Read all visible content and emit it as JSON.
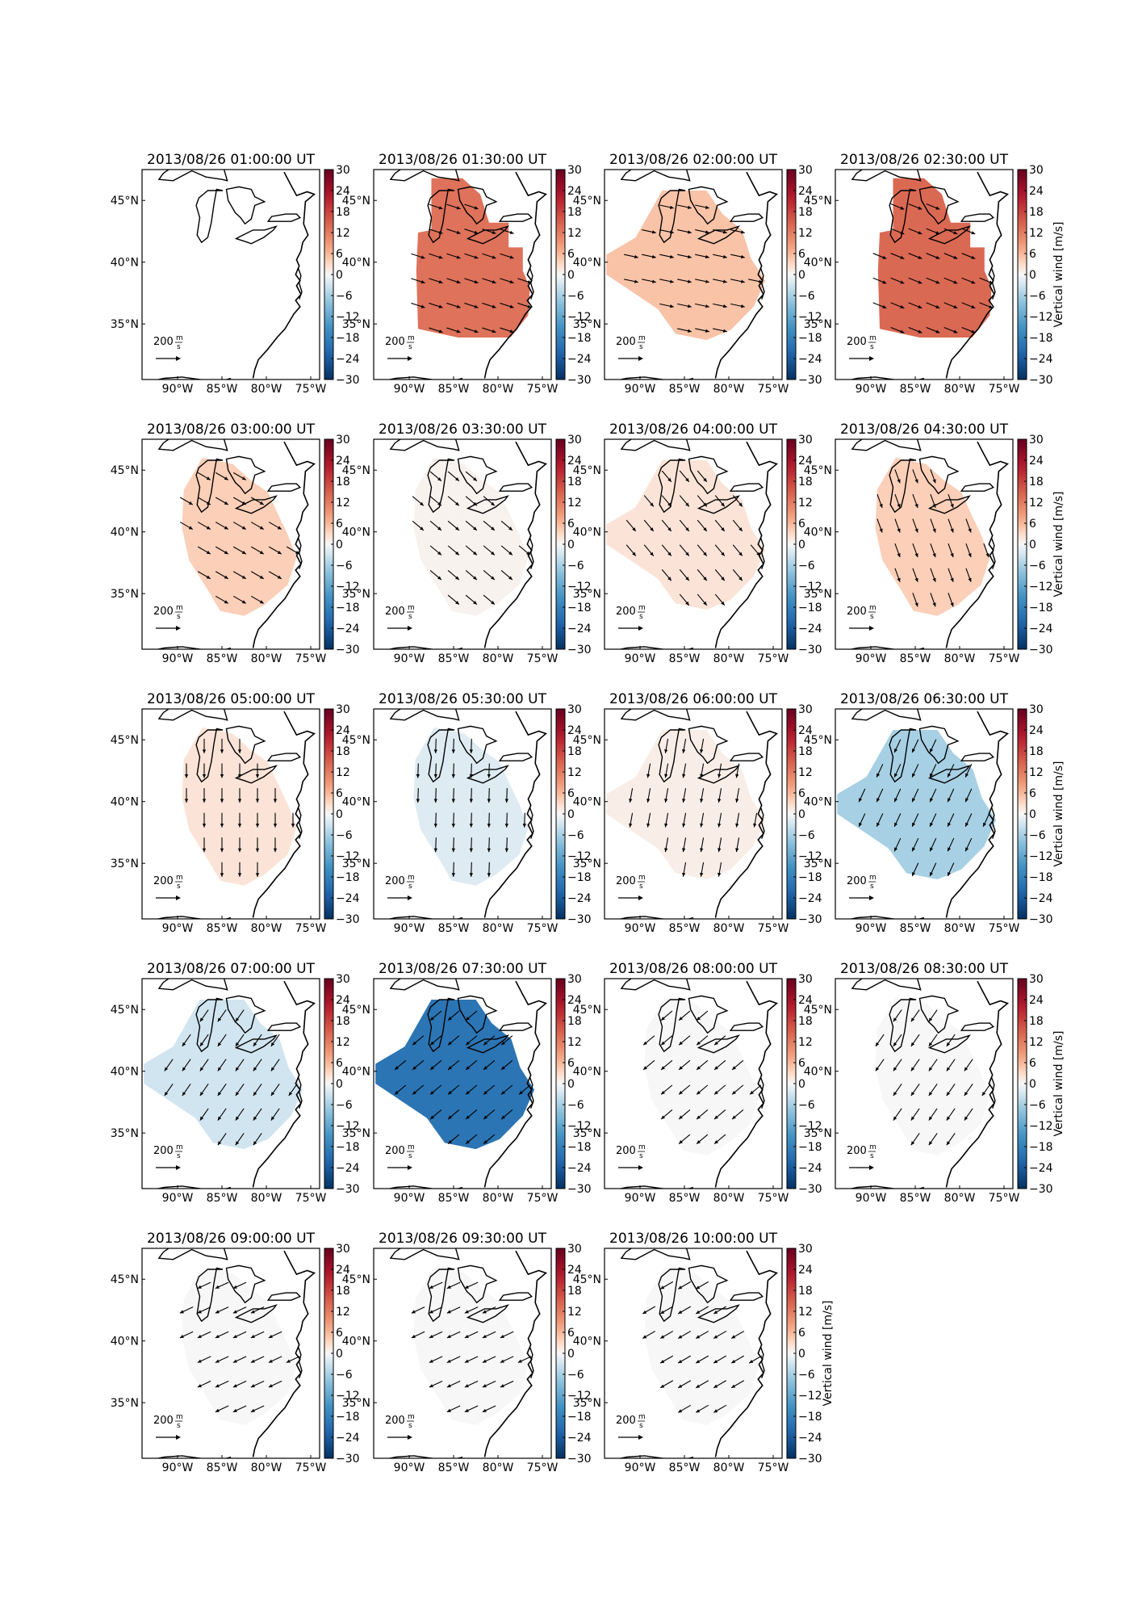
{
  "chart_data": {
    "type": "heatmap",
    "variable_label": "Vertical wind [m/s]",
    "colormap": "RdBu_r",
    "color_range": [
      -30,
      30
    ],
    "colorbar_ticks": [
      "30",
      "24",
      "18",
      "12",
      "6",
      "0",
      "−6",
      "−12",
      "−18",
      "−24",
      "−30"
    ],
    "lon_range": [
      -94,
      -74
    ],
    "lat_range": [
      30.5,
      47.5
    ],
    "lon_ticks": [
      "90°W",
      "85°W",
      "80°W",
      "75°W"
    ],
    "lat_ticks": [
      "45°N",
      "40°N",
      "35°N"
    ],
    "reference_vector": {
      "label": "200",
      "unit_numerator": "m",
      "unit_denominator": "s",
      "magnitude": 200
    },
    "panels": [
      {
        "title": "2013/08/26 01:00:00 UT",
        "vertical_wind": null,
        "vector_dir_deg": null,
        "region": "none"
      },
      {
        "title": "2013/08/26 01:30:00 UT",
        "vertical_wind": 13,
        "vector_dir_deg": 18,
        "region": "large"
      },
      {
        "title": "2013/08/26 02:00:00 UT",
        "vertical_wind": 5,
        "vector_dir_deg": 12,
        "region": "wide"
      },
      {
        "title": "2013/08/26 02:30:00 UT",
        "vertical_wind": 14,
        "vector_dir_deg": 22,
        "region": "large"
      },
      {
        "title": "2013/08/26 03:00:00 UT",
        "vertical_wind": 4,
        "vector_dir_deg": 30,
        "region": "medium"
      },
      {
        "title": "2013/08/26 03:30:00 UT",
        "vertical_wind": 0.5,
        "vector_dir_deg": 40,
        "region": "medium"
      },
      {
        "title": "2013/08/26 04:00:00 UT",
        "vertical_wind": 2,
        "vector_dir_deg": 50,
        "region": "wide"
      },
      {
        "title": "2013/08/26 04:30:00 UT",
        "vertical_wind": 4,
        "vector_dir_deg": 70,
        "region": "medium"
      },
      {
        "title": "2013/08/26 05:00:00 UT",
        "vertical_wind": 2,
        "vector_dir_deg": 90,
        "region": "medium"
      },
      {
        "title": "2013/08/26 05:30:00 UT",
        "vertical_wind": -2,
        "vector_dir_deg": 92,
        "region": "medium"
      },
      {
        "title": "2013/08/26 06:00:00 UT",
        "vertical_wind": 1,
        "vector_dir_deg": 100,
        "region": "wide"
      },
      {
        "title": "2013/08/26 06:30:00 UT",
        "vertical_wind": -6,
        "vector_dir_deg": 115,
        "region": "wide"
      },
      {
        "title": "2013/08/26 07:00:00 UT",
        "vertical_wind": -3,
        "vector_dir_deg": 125,
        "region": "wide"
      },
      {
        "title": "2013/08/26 07:30:00 UT",
        "vertical_wind": -20,
        "vector_dir_deg": 140,
        "region": "wide"
      },
      {
        "title": "2013/08/26 08:00:00 UT",
        "vertical_wind": 0,
        "vector_dir_deg": 140,
        "region": "medium"
      },
      {
        "title": "2013/08/26 08:30:00 UT",
        "vertical_wind": 0,
        "vector_dir_deg": 125,
        "region": "medium"
      },
      {
        "title": "2013/08/26 09:00:00 UT",
        "vertical_wind": 0,
        "vector_dir_deg": 155,
        "region": "medium"
      },
      {
        "title": "2013/08/26 09:30:00 UT",
        "vertical_wind": 0,
        "vector_dir_deg": 155,
        "region": "medium"
      },
      {
        "title": "2013/08/26 10:00:00 UT",
        "vertical_wind": 0,
        "vector_dir_deg": 150,
        "region": "medium"
      }
    ]
  }
}
